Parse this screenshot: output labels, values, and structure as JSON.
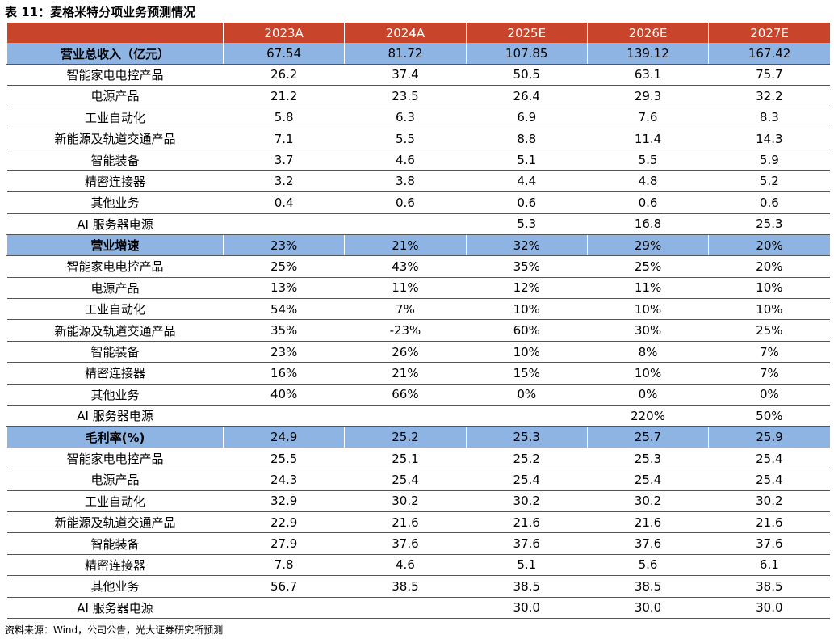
{
  "title": "表 11：麦格米特分项业务预测情况",
  "header": [
    "2023A",
    "2024A",
    "2025E",
    "2026E",
    "2027E"
  ],
  "sections": [
    {
      "label": "营业总收入（亿元）",
      "values": [
        "67.54",
        "81.72",
        "107.85",
        "139.12",
        "167.42"
      ],
      "rows": [
        {
          "label": "智能家电电控产品",
          "values": [
            "26.2",
            "37.4",
            "50.5",
            "63.1",
            "75.7"
          ]
        },
        {
          "label": "电源产品",
          "values": [
            "21.2",
            "23.5",
            "26.4",
            "29.3",
            "32.2"
          ]
        },
        {
          "label": "工业自动化",
          "values": [
            "5.8",
            "6.3",
            "6.9",
            "7.6",
            "8.3"
          ]
        },
        {
          "label": "新能源及轨道交通产品",
          "values": [
            "7.1",
            "5.5",
            "8.8",
            "11.4",
            "14.3"
          ]
        },
        {
          "label": "智能装备",
          "values": [
            "3.7",
            "4.6",
            "5.1",
            "5.5",
            "5.9"
          ]
        },
        {
          "label": "精密连接器",
          "values": [
            "3.2",
            "3.8",
            "4.4",
            "4.8",
            "5.2"
          ]
        },
        {
          "label": "其他业务",
          "values": [
            "0.4",
            "0.6",
            "0.6",
            "0.6",
            "0.6"
          ]
        },
        {
          "label": "AI 服务器电源",
          "values": [
            null,
            null,
            "5.3",
            "16.8",
            "25.3"
          ]
        }
      ]
    },
    {
      "label": "营业增速",
      "values": [
        "23%",
        "21%",
        "32%",
        "29%",
        "20%"
      ],
      "rows": [
        {
          "label": "智能家电电控产品",
          "values": [
            "25%",
            "43%",
            "35%",
            "25%",
            "20%"
          ]
        },
        {
          "label": "电源产品",
          "values": [
            "13%",
            "11%",
            "12%",
            "11%",
            "10%"
          ]
        },
        {
          "label": "工业自动化",
          "values": [
            "54%",
            "7%",
            "10%",
            "10%",
            "10%"
          ]
        },
        {
          "label": "新能源及轨道交通产品",
          "values": [
            "35%",
            "-23%",
            "60%",
            "30%",
            "25%"
          ]
        },
        {
          "label": "智能装备",
          "values": [
            "23%",
            "26%",
            "10%",
            "8%",
            "7%"
          ]
        },
        {
          "label": "精密连接器",
          "values": [
            "16%",
            "21%",
            "15%",
            "10%",
            "7%"
          ]
        },
        {
          "label": "其他业务",
          "values": [
            "40%",
            "66%",
            "0%",
            "0%",
            "0%"
          ]
        },
        {
          "label": "AI 服务器电源",
          "values": [
            null,
            null,
            null,
            "220%",
            "50%"
          ]
        }
      ]
    },
    {
      "label": "毛利率(%)",
      "values": [
        "24.9",
        "25.2",
        "25.3",
        "25.7",
        "25.9"
      ],
      "rows": [
        {
          "label": "智能家电电控产品",
          "values": [
            "25.5",
            "25.1",
            "25.2",
            "25.3",
            "25.4"
          ]
        },
        {
          "label": "电源产品",
          "values": [
            "24.3",
            "25.4",
            "25.4",
            "25.4",
            "25.4"
          ]
        },
        {
          "label": "工业自动化",
          "values": [
            "32.9",
            "30.2",
            "30.2",
            "30.2",
            "30.2"
          ]
        },
        {
          "label": "新能源及轨道交通产品",
          "values": [
            "22.9",
            "21.6",
            "21.6",
            "21.6",
            "21.6"
          ]
        },
        {
          "label": "智能装备",
          "values": [
            "27.9",
            "37.6",
            "37.6",
            "37.6",
            "37.6"
          ]
        },
        {
          "label": "精密连接器",
          "values": [
            "7.8",
            "4.6",
            "5.1",
            "5.6",
            "6.1"
          ]
        },
        {
          "label": "其他业务",
          "values": [
            "56.7",
            "38.5",
            "38.5",
            "38.5",
            "38.5"
          ]
        },
        {
          "label": "AI 服务器电源",
          "values": [
            null,
            null,
            "30.0",
            "30.0",
            "30.0"
          ]
        }
      ]
    }
  ],
  "source": "资料来源：Wind，公司公告，光大证券研究所预测"
}
